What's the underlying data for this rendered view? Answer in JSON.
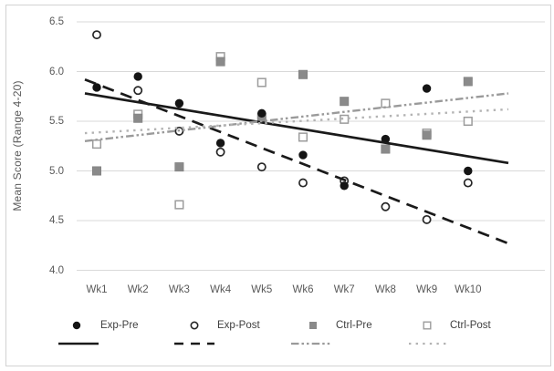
{
  "chart_data": {
    "type": "scatter",
    "title": "",
    "ylabel": "Mean Score (Range 4-20)",
    "xlabel": "",
    "categories": [
      "Wk1",
      "Wk2",
      "Wk3",
      "Wk4",
      "Wk5",
      "Wk6",
      "Wk7",
      "Wk8",
      "Wk9",
      "Wk10"
    ],
    "y_tick_labels": [
      "6.5",
      "6.0",
      "5.5",
      "5.0",
      "4.5",
      "4.0"
    ],
    "y_tick_values": [
      6.5,
      6.0,
      5.5,
      5.0,
      4.5,
      4.0
    ],
    "ylim": [
      3.75,
      6.55
    ],
    "grid": true,
    "legend_position": "bottom",
    "series": [
      {
        "name": "Exp-Pre",
        "marker": "filled-circle",
        "marker_color": "#141414",
        "values": [
          5.84,
          5.95,
          5.68,
          5.28,
          5.58,
          5.16,
          4.85,
          5.32,
          5.83,
          5.0
        ],
        "trendline": {
          "style": "solid",
          "color": "#1a1a1a",
          "start_value": 5.78,
          "end_value": 5.08
        }
      },
      {
        "name": "Exp-Post",
        "marker": "open-circle",
        "marker_color": "#262626",
        "values": [
          6.37,
          5.81,
          5.4,
          5.19,
          5.04,
          4.88,
          4.9,
          4.64,
          4.51,
          4.88
        ],
        "trendline": {
          "style": "dashed",
          "color": "#1a1a1a",
          "start_value": 5.92,
          "end_value": 4.27
        }
      },
      {
        "name": "Ctrl-Pre",
        "marker": "filled-square",
        "marker_color": "#8a8a8a",
        "values": [
          5.0,
          5.53,
          5.04,
          6.1,
          5.54,
          5.97,
          5.7,
          5.22,
          5.36,
          5.9
        ],
        "trendline": {
          "style": "dash-dot-dot",
          "color": "#9a9a9a",
          "start_value": 5.3,
          "end_value": 5.78
        }
      },
      {
        "name": "Ctrl-Post",
        "marker": "open-square",
        "marker_color": "#9c9c9c",
        "values": [
          5.27,
          5.57,
          4.66,
          6.15,
          5.89,
          5.34,
          5.52,
          5.68,
          5.38,
          5.5
        ],
        "trendline": {
          "style": "dotted",
          "color": "#b3b3b3",
          "start_value": 5.38,
          "end_value": 5.62
        }
      }
    ]
  },
  "colors": {
    "background": "#ffffff",
    "frame_border": "#d2d2d2",
    "gridline": "#d9d9d9",
    "axis_text": "#595959",
    "legend_text": "#3f3f3f"
  }
}
